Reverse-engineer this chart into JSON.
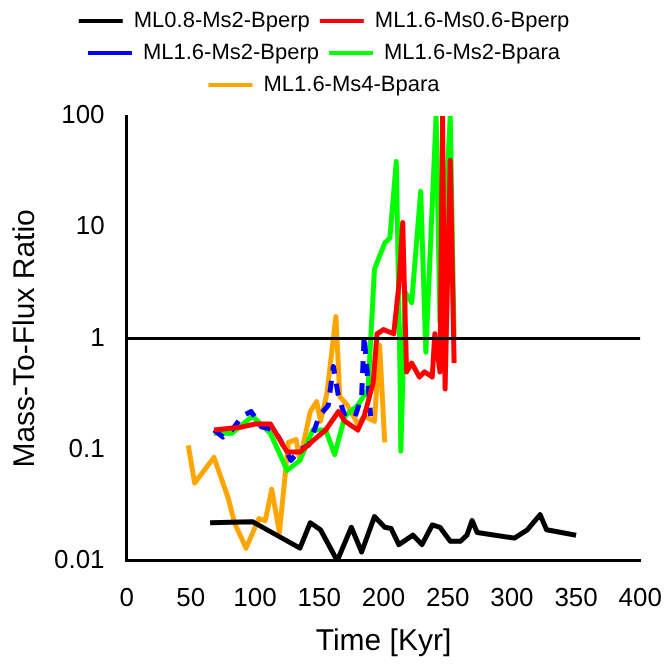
{
  "chart_data": {
    "type": "line",
    "xlabel": "Time [Kyr]",
    "ylabel": "Mass-To-Flux Ratio",
    "log": "y",
    "grid": false,
    "legend": "top",
    "marker": "none",
    "xlim": [
      0,
      400
    ],
    "xticks": [
      0,
      50,
      100,
      150,
      200,
      250,
      300,
      350,
      400
    ],
    "ylim": [
      0.01,
      100
    ],
    "yticks": [
      0.01,
      0.1,
      1,
      10,
      100
    ],
    "ref_lines": [
      {
        "axis": "y",
        "value": 1,
        "color": "#000000"
      }
    ],
    "series": [
      {
        "name": "ML0.8-Ms2-Bperp",
        "color": "#000000",
        "x": [
          65,
          98,
          135,
          143,
          151,
          164,
          175,
          183,
          193,
          201,
          206,
          212,
          223,
          230,
          238,
          244,
          252,
          260,
          265,
          269,
          273,
          302,
          312,
          322,
          327,
          350
        ],
        "values": [
          0.022,
          0.0225,
          0.013,
          0.022,
          0.019,
          0.01,
          0.02,
          0.012,
          0.025,
          0.02,
          0.0195,
          0.014,
          0.017,
          0.014,
          0.021,
          0.02,
          0.015,
          0.015,
          0.017,
          0.023,
          0.018,
          0.016,
          0.019,
          0.026,
          0.019,
          0.017
        ]
      },
      {
        "name": "ML1.6-Ms0.6-Bperp",
        "color": "#ff0000",
        "x": [
          68,
          90,
          100,
          112,
          125,
          135,
          145,
          155,
          165,
          170,
          180,
          185,
          192,
          195,
          200,
          208,
          212,
          215,
          218,
          222,
          228,
          232,
          238,
          240,
          244,
          246,
          248,
          252,
          255
        ],
        "values": [
          0.15,
          0.16,
          0.17,
          0.17,
          0.095,
          0.095,
          0.12,
          0.15,
          0.22,
          0.18,
          0.15,
          0.2,
          0.4,
          1.1,
          1.2,
          1.1,
          3,
          11,
          0.5,
          0.6,
          0.45,
          0.5,
          0.45,
          1.1,
          0.5,
          100,
          0.35,
          40,
          0.6
        ]
      },
      {
        "name": "ML1.6-Ms2-Bperp",
        "color": "#0000ff",
        "line_style": "dashed",
        "x": [
          68,
          75,
          82,
          90,
          97,
          105,
          115,
          120,
          128,
          135,
          142,
          150,
          157,
          161,
          165,
          170,
          178,
          183,
          185,
          188,
          190
        ],
        "values": [
          0.15,
          0.13,
          0.15,
          0.2,
          0.22,
          0.16,
          0.15,
          0.12,
          0.08,
          0.1,
          0.11,
          0.2,
          0.25,
          0.56,
          0.3,
          0.2,
          0.2,
          0.3,
          1.06,
          0.4,
          0.2
        ]
      },
      {
        "name": "ML1.6-Ms2-Bpara",
        "color": "#00ff00",
        "x": [
          68,
          82,
          98,
          112,
          125,
          135,
          145,
          155,
          162,
          170,
          180,
          188,
          193,
          201,
          205,
          210,
          213,
          213.5,
          217,
          222,
          229,
          233,
          241,
          244,
          252,
          255
        ],
        "values": [
          0.14,
          0.14,
          0.2,
          0.14,
          0.065,
          0.08,
          0.15,
          0.15,
          0.09,
          0.2,
          0.25,
          0.35,
          4.2,
          7.2,
          8,
          39,
          0.41,
          0.097,
          2.6,
          2.1,
          21,
          0.75,
          100,
          1.4,
          100,
          1
        ]
      },
      {
        "name": "ML1.6-Ms4-Bpara",
        "color": "#ffa500",
        "x": [
          48,
          53,
          68,
          79,
          84,
          93,
          103,
          108,
          113,
          119,
          126,
          132,
          135,
          143,
          148,
          151,
          156,
          163,
          166,
          172,
          180,
          185,
          193,
          197,
          201
        ],
        "values": [
          0.109,
          0.05,
          0.085,
          0.037,
          0.022,
          0.013,
          0.024,
          0.023,
          0.044,
          0.018,
          0.116,
          0.123,
          0.08,
          0.22,
          0.27,
          0.18,
          0.32,
          1.57,
          0.3,
          0.25,
          0.17,
          0.2,
          0.18,
          0.87,
          0.116
        ]
      }
    ]
  }
}
